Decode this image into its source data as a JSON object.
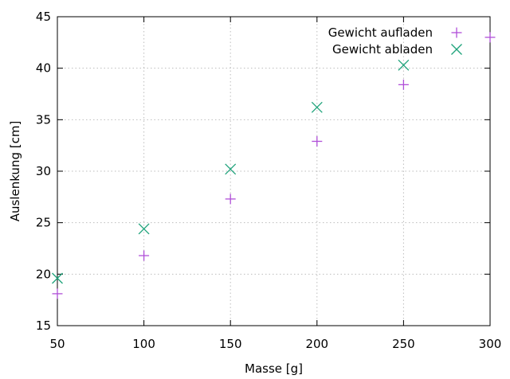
{
  "chart_data": {
    "type": "scatter",
    "title": "",
    "xlabel": "Masse [g]",
    "ylabel": "Auslenkung [cm]",
    "xlim": [
      50,
      300
    ],
    "ylim": [
      15,
      45
    ],
    "xticks": [
      50,
      100,
      150,
      200,
      250,
      300
    ],
    "yticks": [
      15,
      20,
      25,
      30,
      35,
      40,
      45
    ],
    "grid": true,
    "legend_position": "top-right",
    "series": [
      {
        "name": "Gewicht aufladen",
        "marker": "plus",
        "color": "#b04fd8",
        "x": [
          50,
          100,
          150,
          200,
          250,
          300
        ],
        "y": [
          18.1,
          21.8,
          27.3,
          32.9,
          38.4,
          43.0
        ]
      },
      {
        "name": "Gewicht abladen",
        "marker": "cross",
        "color": "#1fa37b",
        "x": [
          50,
          100,
          150,
          200,
          250
        ],
        "y": [
          19.6,
          24.4,
          30.2,
          36.2,
          40.3
        ]
      }
    ]
  }
}
